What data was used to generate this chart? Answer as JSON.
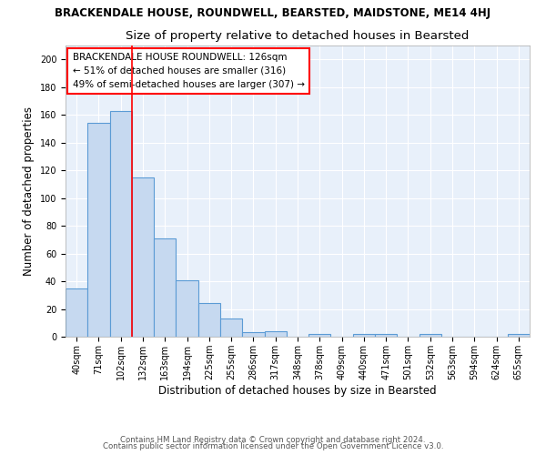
{
  "title": "BRACKENDALE HOUSE, ROUNDWELL, BEARSTED, MAIDSTONE, ME14 4HJ",
  "subtitle": "Size of property relative to detached houses in Bearsted",
  "xlabel": "Distribution of detached houses by size in Bearsted",
  "ylabel": "Number of detached properties",
  "bar_labels": [
    "40sqm",
    "71sqm",
    "102sqm",
    "132sqm",
    "163sqm",
    "194sqm",
    "225sqm",
    "255sqm",
    "286sqm",
    "317sqm",
    "348sqm",
    "378sqm",
    "409sqm",
    "440sqm",
    "471sqm",
    "501sqm",
    "532sqm",
    "563sqm",
    "594sqm",
    "624sqm",
    "655sqm"
  ],
  "bar_values": [
    35,
    154,
    163,
    115,
    71,
    41,
    24,
    13,
    3,
    4,
    0,
    2,
    0,
    2,
    2,
    0,
    2,
    0,
    0,
    0,
    2
  ],
  "bar_color": "#c6d9f0",
  "bar_edge_color": "#5b9bd5",
  "property_line_x": 2.5,
  "property_line_color": "red",
  "annotation_text": "BRACKENDALE HOUSE ROUNDWELL: 126sqm\n← 51% of detached houses are smaller (316)\n49% of semi-detached houses are larger (307) →",
  "annotation_box_color": "white",
  "annotation_box_edge": "red",
  "footnote1": "Contains HM Land Registry data © Crown copyright and database right 2024.",
  "footnote2": "Contains public sector information licensed under the Open Government Licence v3.0.",
  "ylim": [
    0,
    210
  ],
  "yticks": [
    0,
    20,
    40,
    60,
    80,
    100,
    120,
    140,
    160,
    180,
    200
  ],
  "background_color": "#e8f0fa",
  "grid_color": "#ffffff",
  "title_fontsize": 8.5,
  "subtitle_fontsize": 9.5,
  "axis_label_fontsize": 8.5,
  "tick_fontsize": 7,
  "annotation_fontsize": 7.5,
  "footnote_fontsize": 6.2
}
